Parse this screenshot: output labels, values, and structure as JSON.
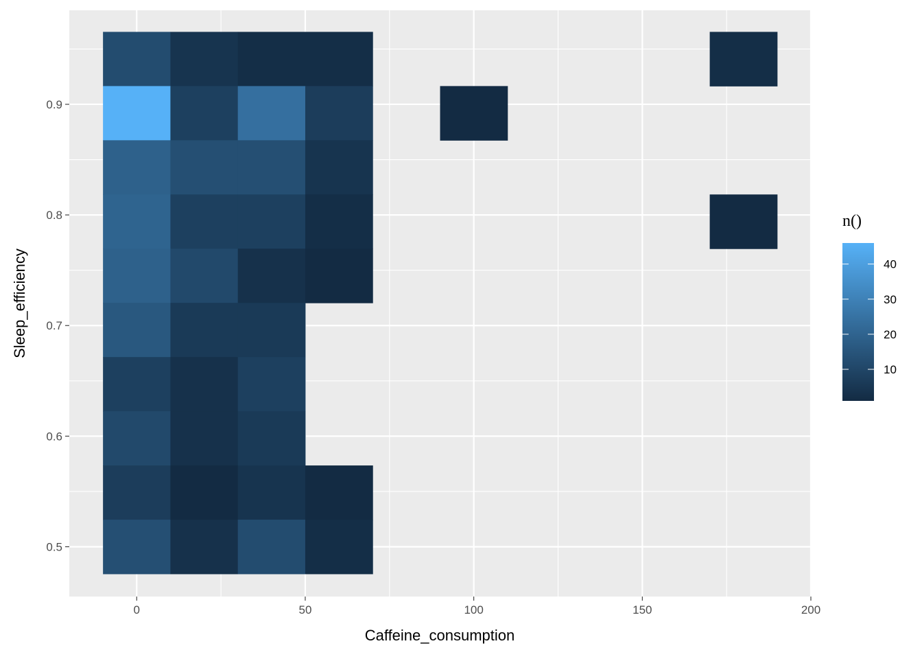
{
  "chart_data": {
    "type": "heatmap",
    "xlabel": "Caffeine_consumption",
    "ylabel": "Sleep_efficiency",
    "xlim": [
      -20,
      200
    ],
    "ylim": [
      0.455,
      0.985
    ],
    "x_ticks": [
      0,
      50,
      100,
      150,
      200
    ],
    "x_tick_labels": [
      "0",
      "50",
      "100",
      "150",
      "200"
    ],
    "y_ticks": [
      0.5,
      0.6,
      0.7,
      0.8,
      0.9
    ],
    "y_tick_labels": [
      "0.5",
      "0.6",
      "0.7",
      "0.8",
      "0.9"
    ],
    "grid": true,
    "bin_width": 20,
    "bin_height": 0.049,
    "legend": {
      "title": "n()",
      "placement": "right",
      "min": 1,
      "max": 46,
      "breaks": [
        10,
        20,
        30,
        40
      ],
      "break_labels": [
        "10",
        "20",
        "30",
        "40"
      ],
      "low_color": "#132B43",
      "high_color": "#56B1F7"
    },
    "cells": [
      {
        "x": 0,
        "y": 0.941,
        "n": 12
      },
      {
        "x": 20,
        "y": 0.941,
        "n": 4
      },
      {
        "x": 40,
        "y": 0.941,
        "n": 2
      },
      {
        "x": 60,
        "y": 0.941,
        "n": 2
      },
      {
        "x": 180,
        "y": 0.941,
        "n": 2
      },
      {
        "x": 0,
        "y": 0.892,
        "n": 46
      },
      {
        "x": 20,
        "y": 0.892,
        "n": 8
      },
      {
        "x": 40,
        "y": 0.892,
        "n": 24
      },
      {
        "x": 60,
        "y": 0.892,
        "n": 7
      },
      {
        "x": 100,
        "y": 0.892,
        "n": 1
      },
      {
        "x": 0,
        "y": 0.843,
        "n": 19
      },
      {
        "x": 20,
        "y": 0.843,
        "n": 13
      },
      {
        "x": 40,
        "y": 0.843,
        "n": 13
      },
      {
        "x": 60,
        "y": 0.843,
        "n": 4
      },
      {
        "x": 0,
        "y": 0.794,
        "n": 20
      },
      {
        "x": 20,
        "y": 0.794,
        "n": 8
      },
      {
        "x": 40,
        "y": 0.794,
        "n": 8
      },
      {
        "x": 60,
        "y": 0.794,
        "n": 2
      },
      {
        "x": 180,
        "y": 0.794,
        "n": 1
      },
      {
        "x": 0,
        "y": 0.745,
        "n": 19
      },
      {
        "x": 20,
        "y": 0.745,
        "n": 11
      },
      {
        "x": 40,
        "y": 0.745,
        "n": 3
      },
      {
        "x": 60,
        "y": 0.745,
        "n": 1
      },
      {
        "x": 0,
        "y": 0.696,
        "n": 16
      },
      {
        "x": 20,
        "y": 0.696,
        "n": 6
      },
      {
        "x": 40,
        "y": 0.696,
        "n": 6
      },
      {
        "x": 0,
        "y": 0.647,
        "n": 8
      },
      {
        "x": 20,
        "y": 0.647,
        "n": 3
      },
      {
        "x": 40,
        "y": 0.647,
        "n": 8
      },
      {
        "x": 0,
        "y": 0.598,
        "n": 11
      },
      {
        "x": 20,
        "y": 0.598,
        "n": 3
      },
      {
        "x": 40,
        "y": 0.598,
        "n": 6
      },
      {
        "x": 0,
        "y": 0.549,
        "n": 7
      },
      {
        "x": 20,
        "y": 0.549,
        "n": 1
      },
      {
        "x": 40,
        "y": 0.549,
        "n": 4
      },
      {
        "x": 60,
        "y": 0.549,
        "n": 1
      },
      {
        "x": 0,
        "y": 0.5,
        "n": 13
      },
      {
        "x": 20,
        "y": 0.5,
        "n": 3
      },
      {
        "x": 40,
        "y": 0.5,
        "n": 12
      },
      {
        "x": 60,
        "y": 0.5,
        "n": 2
      }
    ]
  }
}
